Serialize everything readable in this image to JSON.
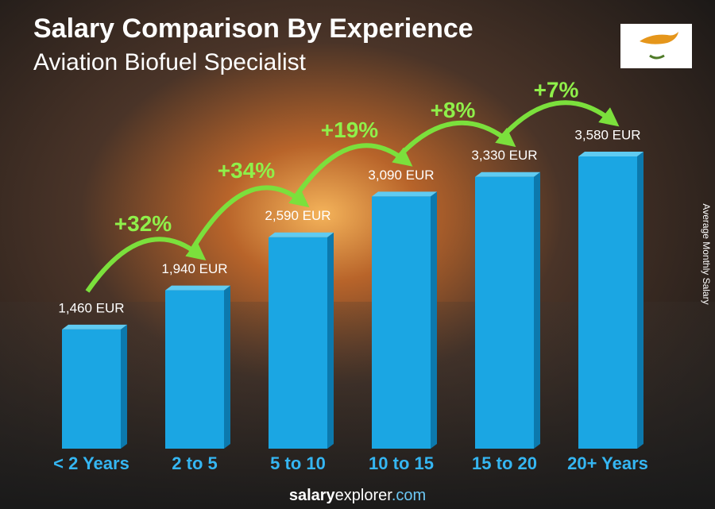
{
  "chart_data": {
    "type": "bar",
    "title": "Salary Comparison By Experience",
    "subtitle": "Aviation Biofuel Specialist",
    "y_label": "Average Monthly Salary",
    "categories": [
      "< 2 Years",
      "2 to 5",
      "5 to 10",
      "10 to 15",
      "15 to 20",
      "20+ Years"
    ],
    "values": [
      1460,
      1940,
      2590,
      3090,
      3330,
      3580
    ],
    "value_labels": [
      "1,460 EUR",
      "1,940 EUR",
      "2,590 EUR",
      "3,090 EUR",
      "3,330 EUR",
      "3,580 EUR"
    ],
    "growth_labels": [
      "+32%",
      "+34%",
      "+19%",
      "+8%",
      "+7%"
    ],
    "color": "#1ba6e3",
    "footer": [
      "salary",
      "explorer",
      ".com"
    ]
  }
}
